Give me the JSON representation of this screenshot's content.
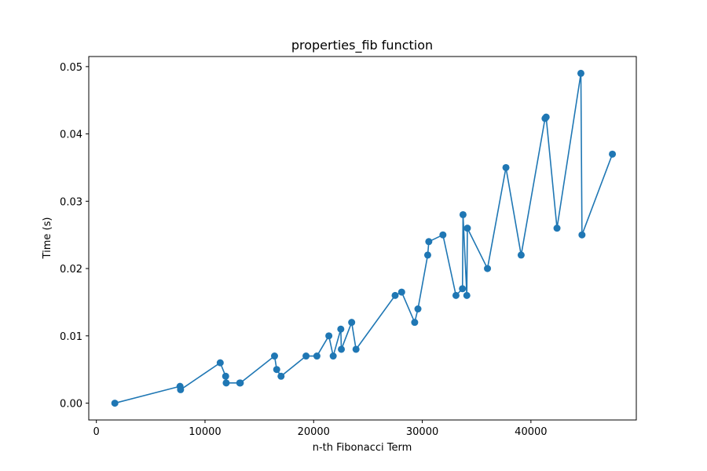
{
  "chart_data": {
    "type": "line",
    "title": "properties_fib function",
    "xlabel": "n-th Fibonacci Term",
    "ylabel": "Time (s)",
    "xlim": [
      -700,
      49700
    ],
    "ylim": [
      -0.0025,
      0.0515
    ],
    "x_ticks": [
      0,
      10000,
      20000,
      30000,
      40000
    ],
    "x_tick_labels": [
      "0",
      "10000",
      "20000",
      "30000",
      "40000"
    ],
    "y_ticks": [
      0.0,
      0.01,
      0.02,
      0.03,
      0.04,
      0.05
    ],
    "y_tick_labels": [
      "0.00",
      "0.01",
      "0.02",
      "0.03",
      "0.04",
      "0.05"
    ],
    "grid": false,
    "marker": "circle",
    "color": "#1f77b4",
    "series": [
      {
        "x": [
          1700,
          7700,
          7750,
          11400,
          11900,
          11950,
          13200,
          13250,
          16400,
          16600,
          17000,
          19300,
          20300,
          21400,
          21800,
          22500,
          22550,
          23500,
          23900,
          27500,
          28100,
          29300,
          29600,
          30500,
          30600,
          31900,
          33100,
          33700,
          33750,
          34100,
          34150,
          36000,
          37700,
          39100,
          41300,
          41400,
          42400,
          44600,
          44700,
          47500
        ],
        "y": [
          0.0,
          0.0025,
          0.002,
          0.006,
          0.004,
          0.003,
          0.003,
          0.003,
          0.007,
          0.005,
          0.004,
          0.007,
          0.007,
          0.01,
          0.007,
          0.011,
          0.008,
          0.012,
          0.008,
          0.016,
          0.0165,
          0.012,
          0.014,
          0.022,
          0.024,
          0.025,
          0.016,
          0.017,
          0.028,
          0.016,
          0.026,
          0.02,
          0.035,
          0.022,
          0.0423,
          0.0425,
          0.026,
          0.049,
          0.025,
          0.037
        ]
      }
    ]
  }
}
